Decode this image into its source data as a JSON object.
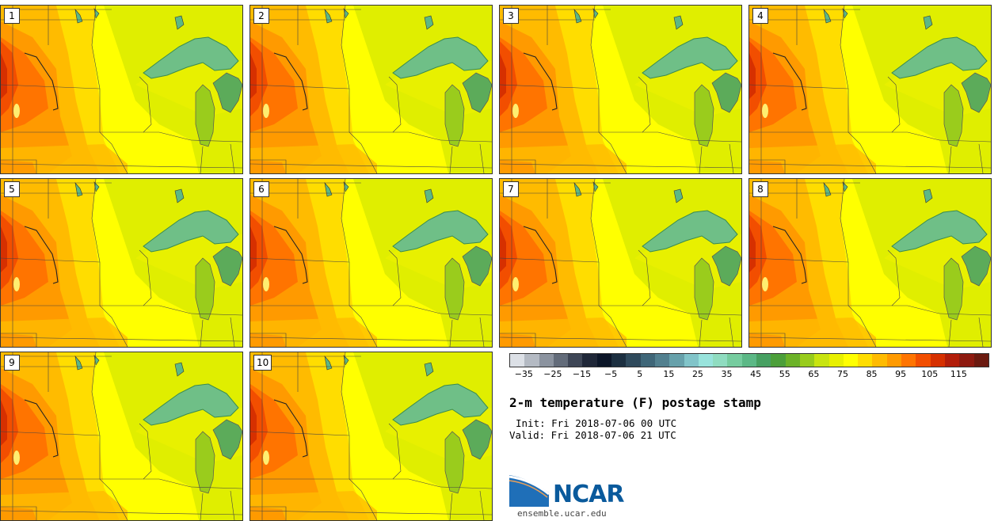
{
  "panels": [
    {
      "label": "1"
    },
    {
      "label": "2"
    },
    {
      "label": "3"
    },
    {
      "label": "4"
    },
    {
      "label": "5"
    },
    {
      "label": "6"
    },
    {
      "label": "7"
    },
    {
      "label": "8"
    },
    {
      "label": "9"
    },
    {
      "label": "10"
    }
  ],
  "colorbar": {
    "colors": [
      "#dce0e6",
      "#b4bac3",
      "#8b939f",
      "#636c7a",
      "#3e4656",
      "#1f2738",
      "#0c1628",
      "#1c2f40",
      "#2f4a5c",
      "#3f6678",
      "#52808f",
      "#67a1ab",
      "#81c4c9",
      "#98e3dc",
      "#8fdcc0",
      "#76cc9f",
      "#5cb886",
      "#47a062",
      "#4c9f3a",
      "#6cb228",
      "#98cc1c",
      "#c8e410",
      "#e8f000",
      "#ffff00",
      "#ffdd00",
      "#ffbb00",
      "#ff9a00",
      "#ff7400",
      "#f24e00",
      "#d63000",
      "#b21d0a",
      "#8e1a10",
      "#6b1a10"
    ],
    "tick_labels": [
      "−35",
      "−25",
      "−15",
      "−5",
      "5",
      "15",
      "25",
      "35",
      "45",
      "55",
      "65",
      "75",
      "85",
      "95",
      "105",
      "115"
    ],
    "min": -40,
    "max": 125
  },
  "title": "2-m temperature (F) postage stamp",
  "init": "Init: Fri 2018-07-06 00 UTC",
  "valid": "Valid: Fri 2018-07-06 21 UTC",
  "logo": {
    "name": "NCAR",
    "url": "ensemble.ucar.edu"
  }
}
